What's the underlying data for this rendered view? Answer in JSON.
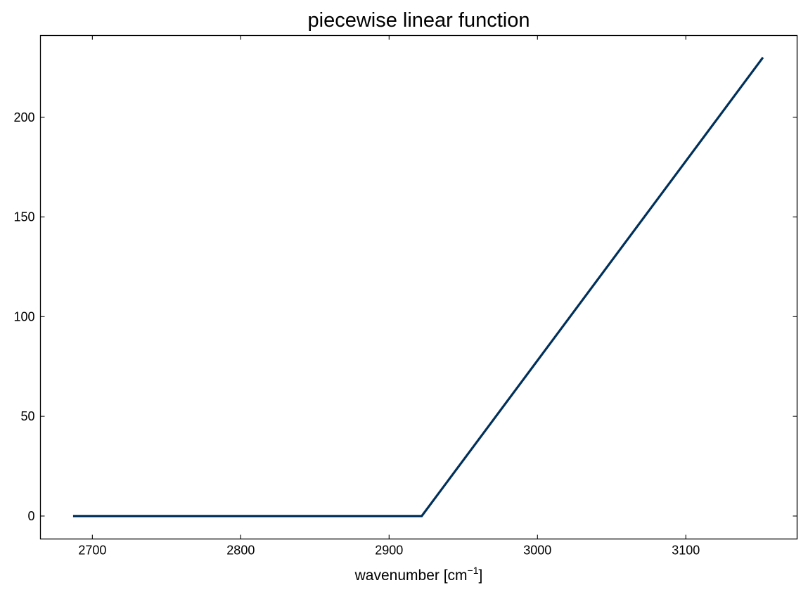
{
  "chart_data": {
    "type": "line",
    "title": "piecewise linear function",
    "xlabel": "wavenumber [cm",
    "xlabel_superscript": "−1",
    "xlabel_suffix": "]",
    "ylabel": "",
    "xlim": [
      2665,
      3175
    ],
    "ylim": [
      -11.5,
      241
    ],
    "xticks": [
      2700,
      2800,
      2900,
      3000,
      3100
    ],
    "yticks": [
      0,
      50,
      100,
      150,
      200
    ],
    "xtick_labels": [
      "2700",
      "2800",
      "2900",
      "3000",
      "3100"
    ],
    "ytick_labels": [
      "0",
      "50",
      "100",
      "150",
      "200"
    ],
    "tick_direction": "in",
    "grid": false,
    "series": [
      {
        "color": "#00305a",
        "x": [
          2687,
          2922,
          3152
        ],
        "y": [
          0,
          0,
          230
        ]
      }
    ]
  }
}
